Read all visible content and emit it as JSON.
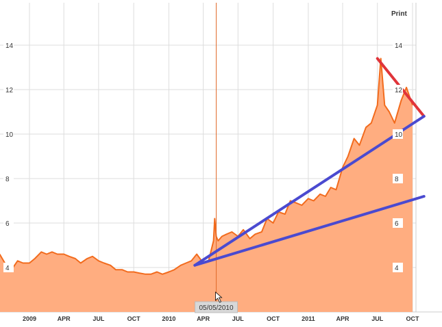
{
  "toolbar": {
    "print_label": "Print"
  },
  "colors": {
    "area_fill": "#FFAD80",
    "price_line": "#F26B1D",
    "grid": "#dddddd",
    "cursor_line": "#E06A2A",
    "trend_red": "#E0343A",
    "trend_blue": "#4A4AD0"
  },
  "cursor": {
    "date_label": "05/05/2010",
    "x": "2010-05-05"
  },
  "chart_data": {
    "type": "area",
    "title": "",
    "xlabel": "",
    "ylabel": "",
    "ylim": [
      2,
      16
    ],
    "xlim": [
      "2008-10-15",
      "2011-10-31"
    ],
    "grid": true,
    "yticks": [
      4,
      6,
      8,
      10,
      12,
      14
    ],
    "xticks": [
      {
        "label": "2009",
        "date": "2009-01-01"
      },
      {
        "label": "APR",
        "date": "2009-04-01"
      },
      {
        "label": "JUL",
        "date": "2009-07-01"
      },
      {
        "label": "OCT",
        "date": "2009-10-01"
      },
      {
        "label": "2010",
        "date": "2010-01-01"
      },
      {
        "label": "APR",
        "date": "2010-04-01"
      },
      {
        "label": "JUL",
        "date": "2010-07-01"
      },
      {
        "label": "OCT",
        "date": "2010-10-01"
      },
      {
        "label": "2011",
        "date": "2011-01-01"
      },
      {
        "label": "APR",
        "date": "2011-04-01"
      },
      {
        "label": "JUL",
        "date": "2011-07-01"
      },
      {
        "label": "OCT",
        "date": "2011-10-01"
      }
    ],
    "series": [
      {
        "x": [
          "2008-10-15",
          "2008-11-01",
          "2008-11-15",
          "2008-12-01",
          "2008-12-15",
          "2009-01-01",
          "2009-01-15",
          "2009-02-01",
          "2009-02-15",
          "2009-03-01",
          "2009-03-15",
          "2009-04-01",
          "2009-04-15",
          "2009-05-01",
          "2009-05-15",
          "2009-06-01",
          "2009-06-15",
          "2009-07-01",
          "2009-07-15",
          "2009-08-01",
          "2009-08-15",
          "2009-09-01",
          "2009-09-15",
          "2009-10-01",
          "2009-10-15",
          "2009-11-01",
          "2009-11-15",
          "2009-12-01",
          "2009-12-15",
          "2010-01-01",
          "2010-01-15",
          "2010-02-01",
          "2010-02-15",
          "2010-03-01",
          "2010-03-15",
          "2010-04-01",
          "2010-04-15",
          "2010-04-28",
          "2010-05-01",
          "2010-05-05",
          "2010-05-10",
          "2010-05-20",
          "2010-06-01",
          "2010-06-15",
          "2010-07-01",
          "2010-07-15",
          "2010-08-01",
          "2010-08-15",
          "2010-09-01",
          "2010-09-15",
          "2010-10-01",
          "2010-10-15",
          "2010-11-01",
          "2010-11-15",
          "2010-12-01",
          "2010-12-15",
          "2011-01-01",
          "2011-01-15",
          "2011-02-01",
          "2011-02-15",
          "2011-03-01",
          "2011-03-15",
          "2011-04-01",
          "2011-04-15",
          "2011-05-01",
          "2011-05-15",
          "2011-06-01",
          "2011-06-15",
          "2011-07-01",
          "2011-07-10",
          "2011-07-20",
          "2011-08-01",
          "2011-08-15",
          "2011-09-01",
          "2011-09-15",
          "2011-10-01"
        ],
        "values": [
          4.6,
          4.1,
          3.9,
          4.3,
          4.2,
          4.2,
          4.4,
          4.7,
          4.6,
          4.7,
          4.6,
          4.6,
          4.5,
          4.4,
          4.2,
          4.4,
          4.5,
          4.3,
          4.2,
          4.1,
          3.9,
          3.9,
          3.8,
          3.8,
          3.75,
          3.7,
          3.7,
          3.8,
          3.7,
          3.8,
          3.9,
          4.1,
          4.2,
          4.3,
          4.6,
          4.2,
          4.3,
          5.2,
          6.2,
          5.4,
          5.2,
          5.4,
          5.5,
          5.6,
          5.4,
          5.7,
          5.3,
          5.5,
          5.6,
          6.2,
          6.0,
          6.5,
          6.4,
          7.0,
          6.9,
          6.8,
          7.1,
          7.0,
          7.3,
          7.2,
          7.6,
          7.5,
          8.5,
          9.0,
          9.8,
          9.5,
          10.3,
          10.5,
          11.3,
          13.4,
          11.3,
          11.0,
          10.5,
          11.5,
          12.1,
          11.3
        ]
      }
    ],
    "annotations": [
      {
        "type": "trendline",
        "color": "red",
        "from": {
          "x": "2011-07-01",
          "y": 13.4
        },
        "to": {
          "x": "2011-10-31",
          "y": 10.8
        }
      },
      {
        "type": "trendline",
        "color": "blue",
        "from": {
          "x": "2010-03-10",
          "y": 4.1
        },
        "to": {
          "x": "2011-10-31",
          "y": 10.8
        }
      },
      {
        "type": "trendline",
        "color": "blue",
        "from": {
          "x": "2010-03-10",
          "y": 4.1
        },
        "to": {
          "x": "2011-10-31",
          "y": 7.2
        }
      }
    ]
  }
}
